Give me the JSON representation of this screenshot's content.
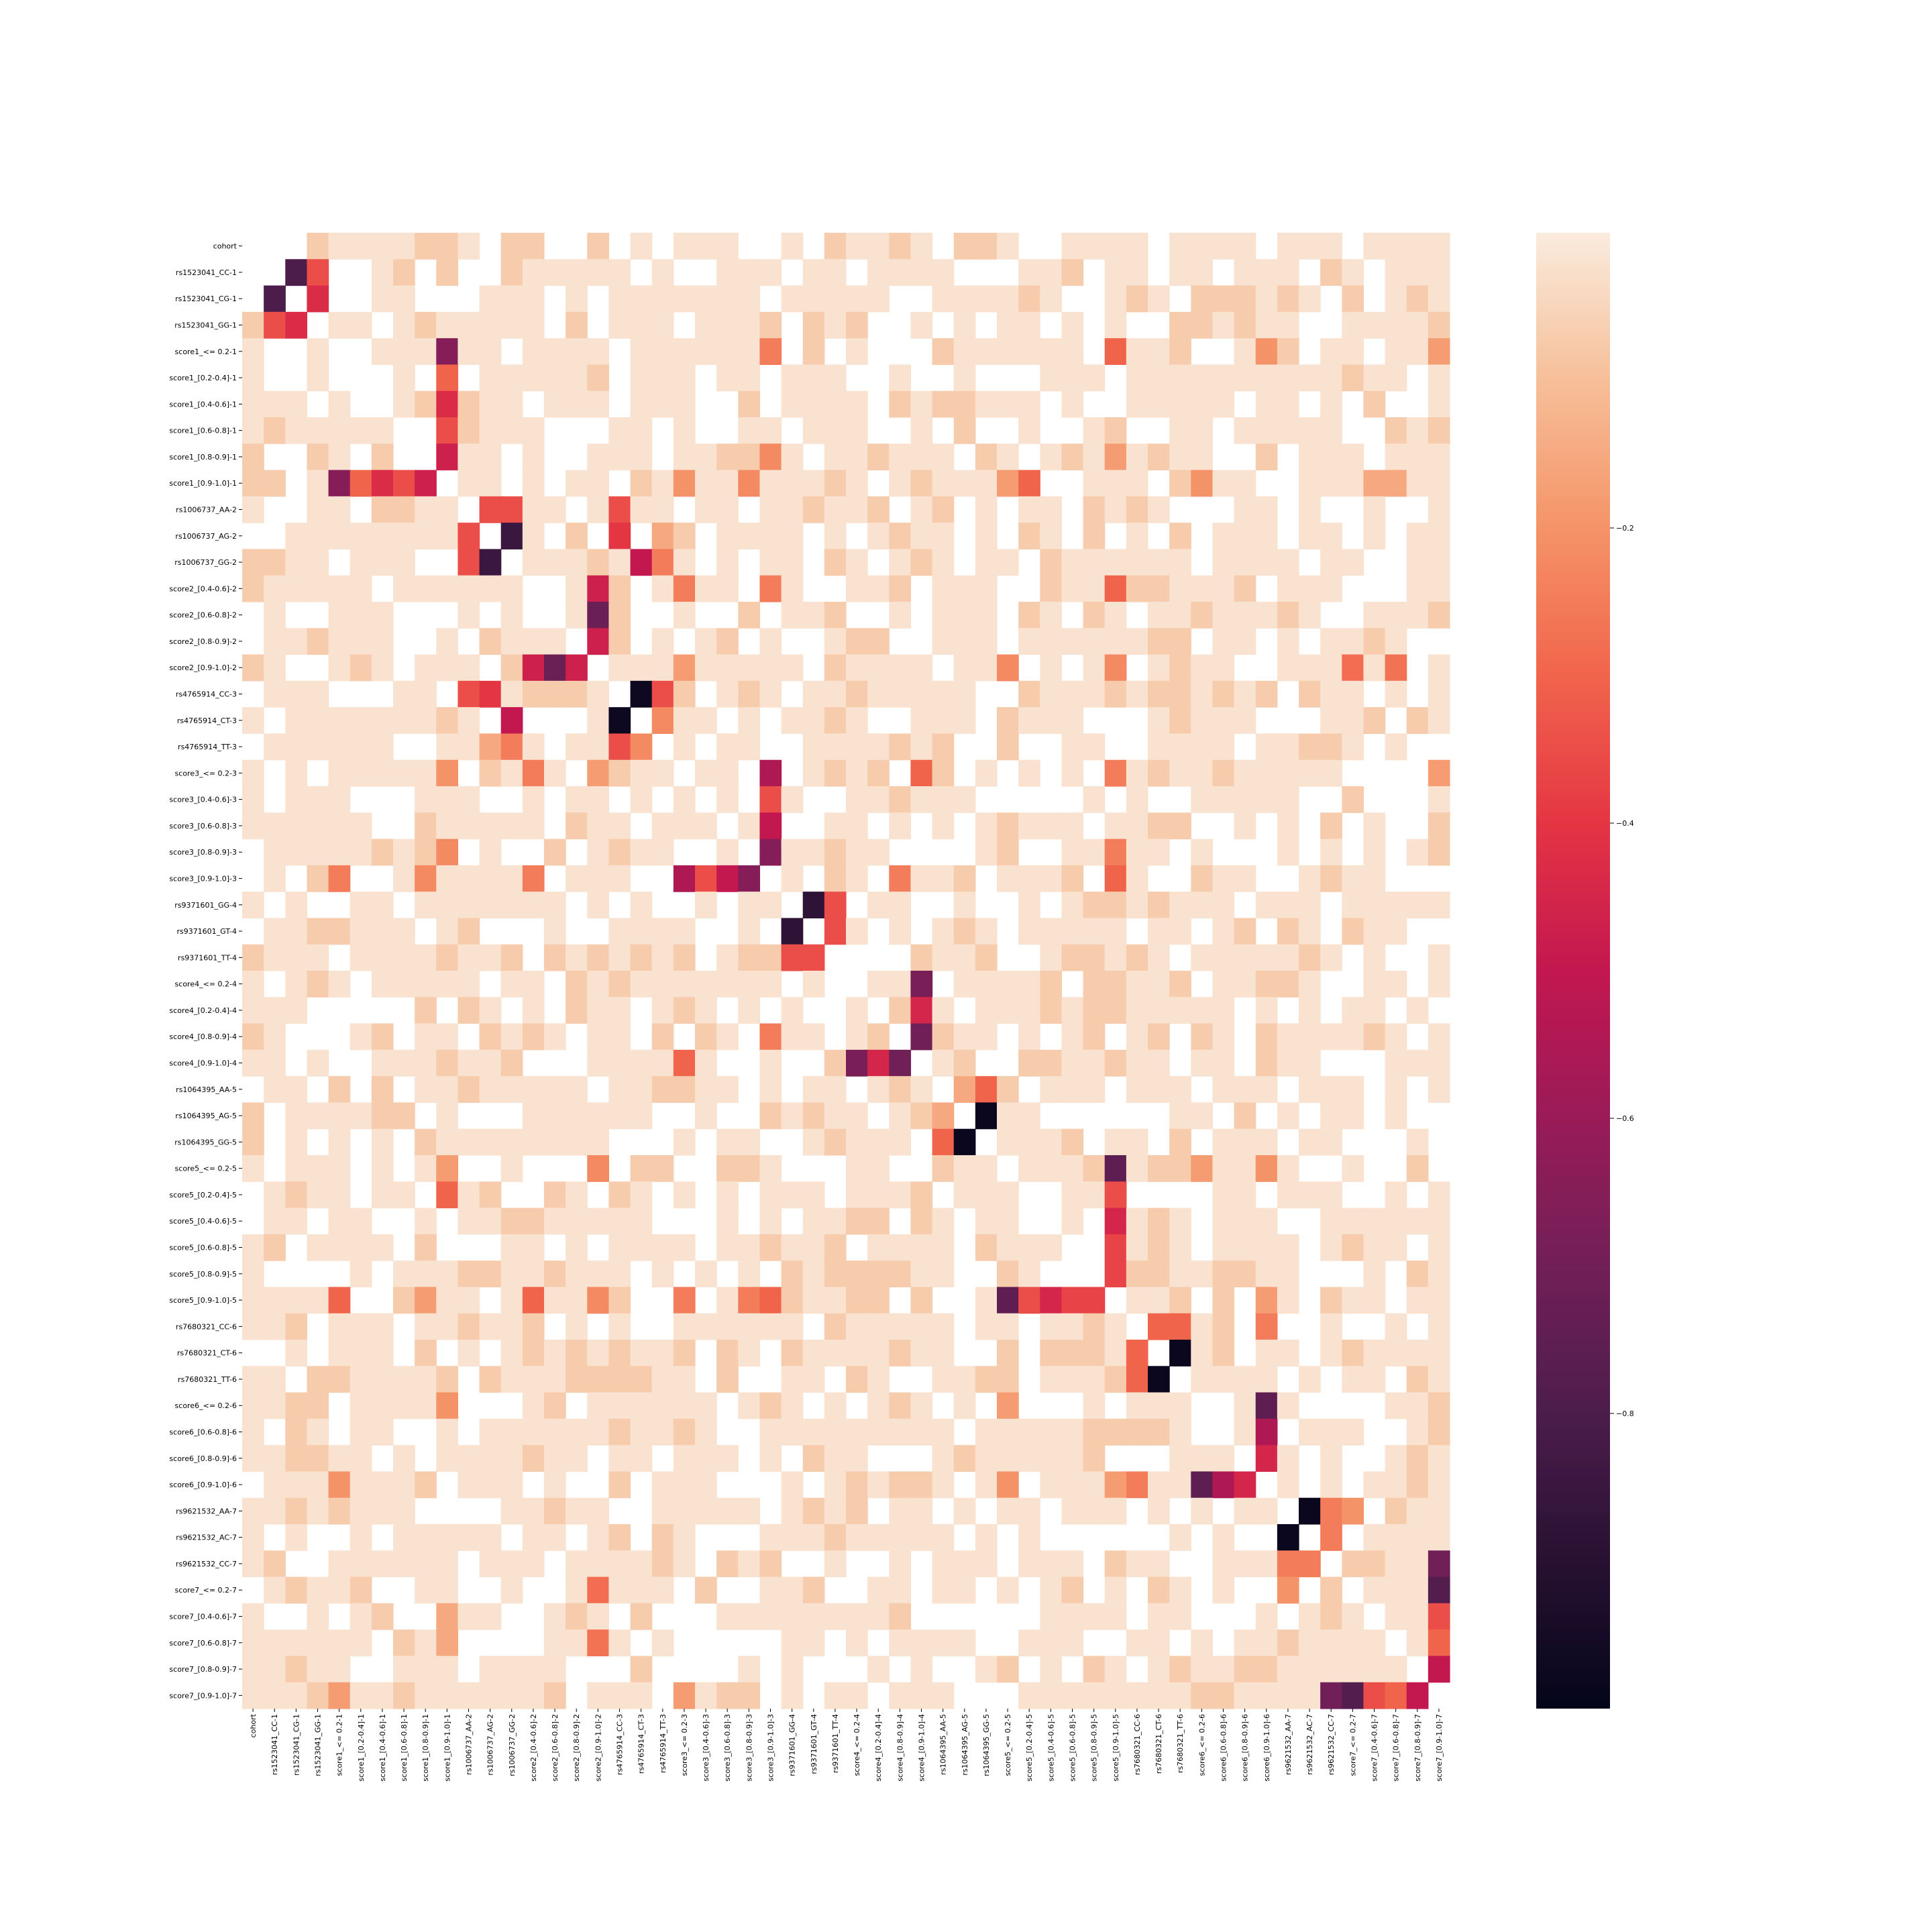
{
  "chart_data": {
    "type": "heatmap",
    "title": "",
    "xlabel": "",
    "ylabel": "",
    "labels": [
      "cohort",
      "rs1523041_CC-1",
      "rs1523041_CG-1",
      "rs1523041_GG-1",
      "score1_<= 0.2-1",
      "score1_[0.2-0.4]-1",
      "score1_[0.4-0.6]-1",
      "score1_[0.6-0.8]-1",
      "score1_[0.8-0.9]-1",
      "score1_[0.9-1.0]-1",
      "rs1006737_AA-2",
      "rs1006737_AG-2",
      "rs1006737_GG-2",
      "score2_[0.4-0.6]-2",
      "score2_[0.6-0.8]-2",
      "score2_[0.8-0.9]-2",
      "score2_[0.9-1.0]-2",
      "rs4765914_CC-3",
      "rs4765914_CT-3",
      "rs4765914_TT-3",
      "score3_<= 0.2-3",
      "score3_[0.4-0.6]-3",
      "score3_[0.6-0.8]-3",
      "score3_[0.8-0.9]-3",
      "score3_[0.9-1.0]-3",
      "rs9371601_GG-4",
      "rs9371601_GT-4",
      "rs9371601_TT-4",
      "score4_<= 0.2-4",
      "score4_[0.2-0.4]-4",
      "score4_[0.8-0.9]-4",
      "score4_[0.9-1.0]-4",
      "rs1064395_AA-5",
      "rs1064395_AG-5",
      "rs1064395_GG-5",
      "score5_<= 0.2-5",
      "score5_[0.2-0.4]-5",
      "score5_[0.4-0.6]-5",
      "score5_[0.6-0.8]-5",
      "score5_[0.8-0.9]-5",
      "score5_[0.9-1.0]-5",
      "rs7680321_CC-6",
      "rs7680321_CT-6",
      "rs7680321_TT-6",
      "score6_<= 0.2-6",
      "score6_[0.6-0.8]-6",
      "score6_[0.8-0.9]-6",
      "score6_[0.9-1.0]-6",
      "rs9621532_AA-7",
      "rs9621532_AC-7",
      "rs9621532_CC-7",
      "score7_<= 0.2-7",
      "score7_[0.4-0.6]-7",
      "score7_[0.6-0.8]-7",
      "score7_[0.8-0.9]-7",
      "score7_[0.9-1.0]-7"
    ],
    "value_range": [
      -1.0,
      0.0
    ],
    "colorbar_ticks": [
      -0.2,
      -0.4,
      -0.6,
      -0.8
    ],
    "colorbar_tick_labels": [
      "−0.2",
      "−0.4",
      "−0.6",
      "−0.8"
    ],
    "colormap": "rocket",
    "masked_color": "#ffffff",
    "strong_cells": [
      [
        "rs1523041_CC-1",
        "rs1523041_CG-1",
        -0.8
      ],
      [
        "rs1523041_CC-1",
        "rs1523041_GG-1",
        -0.35
      ],
      [
        "rs1523041_CG-1",
        "rs1523041_GG-1",
        -0.43
      ],
      [
        "score1_<= 0.2-1",
        "score1_[0.9-1.0]-1",
        -0.65
      ],
      [
        "score1_[0.2-0.4]-1",
        "score1_[0.9-1.0]-1",
        -0.3
      ],
      [
        "score1_[0.4-0.6]-1",
        "score1_[0.9-1.0]-1",
        -0.43
      ],
      [
        "score1_[0.6-0.8]-1",
        "score1_[0.9-1.0]-1",
        -0.35
      ],
      [
        "score1_[0.8-0.9]-1",
        "score1_[0.9-1.0]-1",
        -0.47
      ],
      [
        "rs1006737_AA-2",
        "rs1006737_AG-2",
        -0.35
      ],
      [
        "rs1006737_AA-2",
        "rs1006737_GG-2",
        -0.35
      ],
      [
        "rs1006737_AG-2",
        "rs1006737_GG-2",
        -0.85
      ],
      [
        "score2_[0.4-0.6]-2",
        "score2_[0.9-1.0]-2",
        -0.47
      ],
      [
        "score2_[0.6-0.8]-2",
        "score2_[0.9-1.0]-2",
        -0.72
      ],
      [
        "score2_[0.8-0.9]-2",
        "score2_[0.9-1.0]-2",
        -0.47
      ],
      [
        "rs4765914_CC-3",
        "rs4765914_CT-3",
        -0.97
      ],
      [
        "rs4765914_CC-3",
        "rs4765914_TT-3",
        -0.35
      ],
      [
        "rs4765914_CT-3",
        "rs4765914_TT-3",
        -0.22
      ],
      [
        "rs1006737_AA-2",
        "rs4765914_CC-3",
        -0.35
      ],
      [
        "rs1006737_AG-2",
        "rs4765914_CC-3",
        -0.4
      ],
      [
        "rs1006737_GG-2",
        "rs4765914_CT-3",
        -0.5
      ],
      [
        "rs1006737_GG-2",
        "rs4765914_TT-3",
        -0.25
      ],
      [
        "rs1006737_AG-2",
        "rs4765914_TT-3",
        -0.15
      ],
      [
        "score3_<= 0.2-3",
        "score3_[0.9-1.0]-3",
        -0.55
      ],
      [
        "score3_[0.4-0.6]-3",
        "score3_[0.9-1.0]-3",
        -0.35
      ],
      [
        "score3_[0.6-0.8]-3",
        "score3_[0.9-1.0]-3",
        -0.5
      ],
      [
        "score3_[0.8-0.9]-3",
        "score3_[0.9-1.0]-3",
        -0.65
      ],
      [
        "rs9371601_GG-4",
        "rs9371601_GT-4",
        -0.88
      ],
      [
        "rs9371601_GG-4",
        "rs9371601_TT-4",
        -0.35
      ],
      [
        "rs9371601_GT-4",
        "rs9371601_TT-4",
        -0.35
      ],
      [
        "score4_<= 0.2-4",
        "score4_[0.9-1.0]-4",
        -0.68
      ],
      [
        "score4_[0.2-0.4]-4",
        "score4_[0.9-1.0]-4",
        -0.45
      ],
      [
        "score4_[0.8-0.9]-4",
        "score4_[0.9-1.0]-4",
        -0.7
      ],
      [
        "rs1064395_AA-5",
        "rs1064395_AG-5",
        -0.15
      ],
      [
        "rs1064395_AA-5",
        "rs1064395_GG-5",
        -0.3
      ],
      [
        "rs1064395_AG-5",
        "rs1064395_GG-5",
        -0.98
      ],
      [
        "score5_<= 0.2-5",
        "score5_[0.9-1.0]-5",
        -0.75
      ],
      [
        "score5_[0.2-0.4]-5",
        "score5_[0.9-1.0]-5",
        -0.35
      ],
      [
        "score5_[0.4-0.6]-5",
        "score5_[0.9-1.0]-5",
        -0.45
      ],
      [
        "score5_[0.6-0.8]-5",
        "score5_[0.9-1.0]-5",
        -0.37
      ],
      [
        "score5_[0.8-0.9]-5",
        "score5_[0.9-1.0]-5",
        -0.37
      ],
      [
        "rs7680321_CC-6",
        "rs7680321_CT-6",
        -0.3
      ],
      [
        "rs7680321_CC-6",
        "rs7680321_TT-6",
        -0.3
      ],
      [
        "rs7680321_CT-6",
        "rs7680321_TT-6",
        -0.98
      ],
      [
        "score6_<= 0.2-6",
        "score6_[0.9-1.0]-6",
        -0.75
      ],
      [
        "score6_[0.6-0.8]-6",
        "score6_[0.9-1.0]-6",
        -0.55
      ],
      [
        "score6_[0.8-0.9]-6",
        "score6_[0.9-1.0]-6",
        -0.45
      ],
      [
        "rs9621532_AA-7",
        "rs9621532_AC-7",
        -0.98
      ],
      [
        "rs9621532_AA-7",
        "rs9621532_CC-7",
        -0.25
      ],
      [
        "rs9621532_AC-7",
        "rs9621532_CC-7",
        -0.25
      ],
      [
        "score7_<= 0.2-7",
        "score7_[0.9-1.0]-7",
        -0.78
      ],
      [
        "score7_[0.4-0.6]-7",
        "score7_[0.9-1.0]-7",
        -0.35
      ],
      [
        "score7_[0.6-0.8]-7",
        "score7_[0.9-1.0]-7",
        -0.3
      ],
      [
        "score7_[0.8-0.9]-7",
        "score7_[0.9-1.0]-7",
        -0.5
      ],
      [
        "rs9621532_CC-7",
        "score7_[0.9-1.0]-7",
        -0.7
      ],
      [
        "score1_<= 0.2-1",
        "score3_[0.9-1.0]-3",
        -0.25
      ],
      [
        "score3_<= 0.2-3",
        "score1_[0.9-1.0]-1",
        -0.2
      ],
      [
        "score5_<= 0.2-5",
        "score1_[0.9-1.0]-1",
        -0.18
      ],
      [
        "score5_[0.2-0.4]-5",
        "score1_[0.9-1.0]-1",
        -0.27
      ],
      [
        "score3_<= 0.2-3",
        "score2_[0.4-0.6]-2",
        -0.25
      ],
      [
        "score5_<= 0.2-5",
        "score2_[0.9-1.0]-2",
        -0.22
      ],
      [
        "score3_[0.9-1.0]-3",
        "score1_<= 0.2-1",
        -0.25
      ],
      [
        "score5_[0.9-1.0]-5",
        "score1_<= 0.2-1",
        -0.3
      ],
      [
        "score5_[0.9-1.0]-5",
        "score2_[0.4-0.6]-2",
        -0.3
      ],
      [
        "score3_[0.9-1.0]-3",
        "score2_[0.4-0.6]-2",
        -0.25
      ],
      [
        "score5_[0.9-1.0]-5",
        "score3_<= 0.2-3",
        -0.25
      ],
      [
        "score5_[0.9-1.0]-5",
        "score3_[0.8-0.9]-3",
        -0.22
      ],
      [
        "score4_[0.9-1.0]-4",
        "score3_<= 0.2-3",
        -0.3
      ],
      [
        "score4_[0.8-0.9]-4",
        "score3_[0.9-1.0]-3",
        -0.25
      ],
      [
        "score5_[0.9-1.0]-5",
        "score1_[0.8-0.9]-1",
        -0.18
      ],
      [
        "score6_[0.9-1.0]-6",
        "score1_<= 0.2-1",
        -0.2
      ],
      [
        "score6_[0.9-1.0]-6",
        "score5_[0.9-1.0]-5",
        -0.18
      ],
      [
        "score6_[0.9-1.0]-6",
        "rs7680321_CC-6",
        -0.25
      ],
      [
        "score6_<= 0.2-6",
        "score5_<= 0.2-5",
        -0.18
      ],
      [
        "score5_<= 0.2-5",
        "score6_[0.9-1.0]-6",
        -0.2
      ],
      [
        "score7_<= 0.2-7",
        "score2_[0.9-1.0]-2",
        -0.25
      ],
      [
        "score7_<= 0.2-7",
        "rs9621532_AA-7",
        -0.2
      ],
      [
        "score7_[0.9-1.0]-7",
        "score1_<= 0.2-1",
        -0.18
      ],
      [
        "score7_[0.9-1.0]-7",
        "score3_<= 0.2-3",
        -0.18
      ],
      [
        "score2_[0.9-1.0]-2",
        "score7_<= 0.2-7",
        -0.28
      ],
      [
        "score2_[0.9-1.0]-2",
        "score3_<= 0.2-3",
        -0.18
      ],
      [
        "score3_[0.9-1.0]-3",
        "score5_[0.9-1.0]-5",
        -0.3
      ],
      [
        "score3_[0.9-1.0]-3",
        "score1_[0.8-0.9]-1",
        -0.22
      ],
      [
        "score3_[0.9-1.0]-3",
        "score2_[0.4-0.6]-2",
        -0.25
      ],
      [
        "score5_[0.9-1.0]-5",
        "score3_[0.8-0.9]-3",
        -0.25
      ],
      [
        "score5_[0.9-1.0]-5",
        "score2_[0.9-1.0]-2",
        -0.22
      ],
      [
        "score1_[0.9-1.0]-1",
        "score5_[0.2-0.4]-5",
        -0.3
      ],
      [
        "score1_[0.9-1.0]-1",
        "score3_<= 0.2-3",
        -0.2
      ],
      [
        "score1_[0.9-1.0]-1",
        "score3_[0.8-0.9]-3",
        -0.22
      ],
      [
        "score1_[0.9-1.0]-1",
        "score6_<= 0.2-6",
        -0.2
      ],
      [
        "score1_[0.9-1.0]-1",
        "score7_[0.4-0.6]-7",
        -0.15
      ],
      [
        "score1_[0.9-1.0]-1",
        "score7_[0.6-0.8]-7",
        -0.15
      ],
      [
        "score2_[0.9-1.0]-2",
        "score7_[0.6-0.8]-7",
        -0.27
      ]
    ]
  }
}
